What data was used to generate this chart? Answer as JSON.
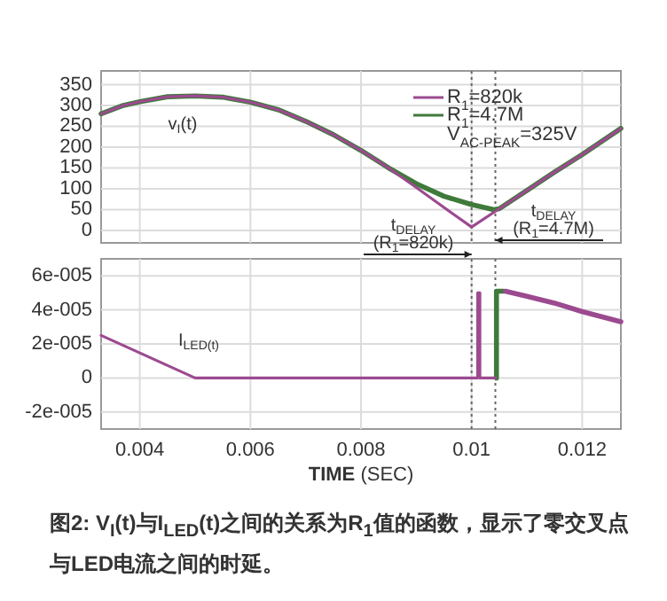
{
  "chart_data": [
    {
      "type": "line",
      "xlim": [
        0.0033,
        0.0127
      ],
      "ylim": [
        -30,
        383
      ],
      "xticks": [
        0.004,
        0.006,
        0.008,
        0.01,
        0.012
      ],
      "yticks": [
        0,
        50,
        100,
        150,
        200,
        250,
        300,
        350
      ],
      "tick_labels": "y",
      "grid": true,
      "legend": "top right",
      "series": [
        {
          "name": "R$_{1}$=820k",
          "color": "#9c4a90",
          "x": [
            0.0033,
            0.0037,
            0.004,
            0.0045,
            0.005,
            0.0055,
            0.006,
            0.0065,
            0.007,
            0.0075,
            0.008,
            0.0085,
            0.009,
            0.0095,
            0.01,
            0.0105,
            0.011,
            0.0115,
            0.012,
            0.0127
          ],
          "values": [
            280,
            300,
            309,
            321,
            323,
            320,
            308,
            290,
            262,
            230,
            192,
            150,
            103,
            55,
            8,
            52,
            96,
            140,
            182,
            245
          ]
        },
        {
          "name": "R$_{1}$=4.7M",
          "color": "#3f7a3a",
          "x": [
            0.0033,
            0.0037,
            0.004,
            0.0045,
            0.005,
            0.0055,
            0.006,
            0.0065,
            0.007,
            0.0075,
            0.008,
            0.0085,
            0.009,
            0.0095,
            0.01,
            0.0104,
            0.0105,
            0.011,
            0.0115,
            0.012,
            0.0127
          ],
          "values": [
            280,
            300,
            309,
            321,
            323,
            320,
            308,
            290,
            262,
            230,
            192,
            150,
            112,
            82,
            62,
            50,
            52,
            96,
            140,
            182,
            245
          ]
        }
      ],
      "ref_lines": [
        {
          "axis": "x",
          "value": 0.01,
          "line_style": "dotted",
          "color": "#666666"
        },
        {
          "axis": "x",
          "value": 0.01043,
          "line_style": "dotted",
          "color": "#666666"
        }
      ],
      "annotations": [
        "v$_{I}$(t)",
        "t$_{DELAY}$ (R$_{1}$=820k)",
        "t$_{DELAY}$ (R$_{1}$=4.7M)",
        "V$_{AC-PEAK}$=325V"
      ]
    },
    {
      "type": "line",
      "xlabel": "**TIME** (SEC)",
      "xlim": [
        0.0033,
        0.0127
      ],
      "ylim": [
        -3e-05,
        7e-05
      ],
      "xticks": [
        0.004,
        0.006,
        0.008,
        0.01,
        0.012
      ],
      "yticks": [
        {
          "value": -2e-05,
          "label": "-2e-005"
        },
        0,
        {
          "value": 2e-05,
          "label": "2e-005"
        },
        {
          "value": 4e-05,
          "label": "4e-005"
        },
        {
          "value": 6e-05,
          "label": "6e-005"
        }
      ],
      "grid": true,
      "series": [
        {
          "color": "#9c4a90",
          "x": [
            0.0033,
            0.005,
            0.01011,
            0.01011,
            0.01015,
            0.01015,
            0.01043
          ],
          "values": [
            2.5e-05,
            0,
            0,
            5e-05,
            5e-05,
            0,
            0
          ]
        },
        {
          "color": "#9c4a90",
          "x": [
            0.01061,
            0.011,
            0.0115,
            0.012,
            0.0127
          ],
          "values": [
            5.1e-05,
            4.8e-05,
            4.4e-05,
            3.9e-05,
            3.3e-05
          ]
        },
        {
          "color": "#3f7a3a",
          "x": [
            0.01045,
            0.01045,
            0.01058
          ],
          "values": [
            0,
            5.1e-05,
            5.1e-05
          ]
        }
      ],
      "ref_lines": [
        {
          "axis": "x",
          "value": 0.01,
          "line_style": "dotted",
          "color": "#666666"
        },
        {
          "axis": "x",
          "value": 0.01043,
          "line_style": "dotted",
          "color": "#666666"
        }
      ],
      "annotations": [
        "I$_{LED(t)}$",
        "图2: V$_{I}$(t)与I$_{LED}$(t)之间的关系为R$_{1}$值的函数，显示了零交叉点与LED电流之间的时延。"
      ]
    }
  ]
}
